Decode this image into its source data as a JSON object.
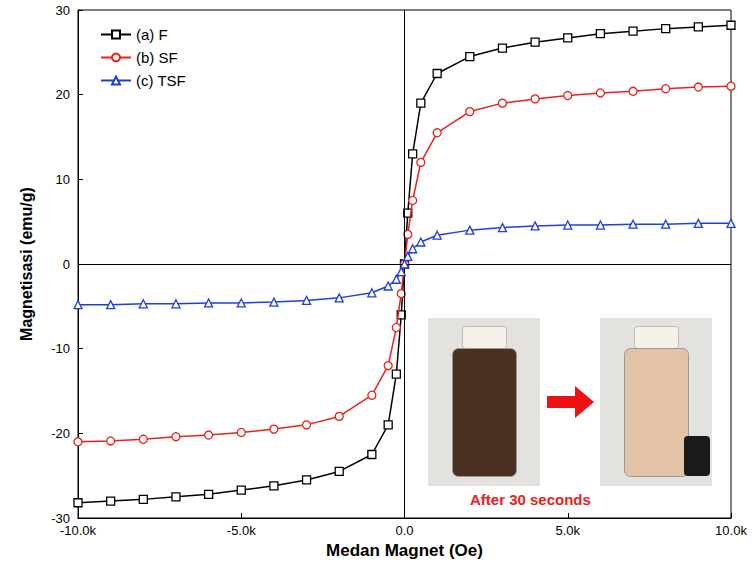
{
  "chart_data": {
    "type": "line",
    "x_label": "Medan Magnet (Oe)",
    "y_label": "Magnetisasi (emu/g)",
    "x": [
      -10000,
      -9000,
      -8000,
      -7000,
      -6000,
      -5000,
      -4000,
      -3000,
      -2000,
      -1000,
      -500,
      -250,
      -100,
      0,
      100,
      250,
      500,
      1000,
      2000,
      3000,
      4000,
      5000,
      6000,
      7000,
      8000,
      9000,
      10000
    ],
    "series": [
      {
        "name": "(a) F",
        "color": "#000000",
        "marker": "square",
        "values": [
          -28.2,
          -28.0,
          -27.8,
          -27.5,
          -27.2,
          -26.7,
          -26.2,
          -25.5,
          -24.5,
          -22.5,
          -19.0,
          -13.0,
          -6.0,
          0.0,
          6.0,
          13.0,
          19.0,
          22.5,
          24.5,
          25.5,
          26.2,
          26.7,
          27.2,
          27.5,
          27.8,
          28.0,
          28.2
        ]
      },
      {
        "name": "(b) SF",
        "color": "#e8211c",
        "marker": "circle",
        "values": [
          -21.0,
          -20.9,
          -20.7,
          -20.4,
          -20.2,
          -19.9,
          -19.5,
          -19.0,
          -18.0,
          -15.5,
          -12.0,
          -7.5,
          -3.5,
          0.0,
          3.5,
          7.5,
          12.0,
          15.5,
          18.0,
          19.0,
          19.5,
          19.9,
          20.2,
          20.4,
          20.7,
          20.9,
          21.0
        ]
      },
      {
        "name": "(c) TSF",
        "color": "#1f3fe0",
        "marker": "triangle",
        "values": [
          -4.8,
          -4.8,
          -4.7,
          -4.7,
          -4.6,
          -4.6,
          -4.5,
          -4.3,
          -4.0,
          -3.4,
          -2.6,
          -1.8,
          -0.9,
          0.0,
          0.9,
          1.8,
          2.6,
          3.4,
          4.0,
          4.3,
          4.5,
          4.6,
          4.6,
          4.7,
          4.7,
          4.8,
          4.8
        ]
      }
    ],
    "xlim": [
      -10000,
      10000
    ],
    "xticks": [
      {
        "value": -10000,
        "label": "-10.0k"
      },
      {
        "value": -5000,
        "label": "-5.0k"
      },
      {
        "value": 0,
        "label": "0.0"
      },
      {
        "value": 5000,
        "label": "5.0k"
      },
      {
        "value": 10000,
        "label": "10.0k"
      }
    ],
    "ylim": [
      -30,
      30
    ],
    "yticks": [
      -30,
      -20,
      -10,
      0,
      10,
      20,
      30
    ],
    "legend": "upper left",
    "grid": false,
    "annotations": [
      "After 30 seconds"
    ]
  }
}
